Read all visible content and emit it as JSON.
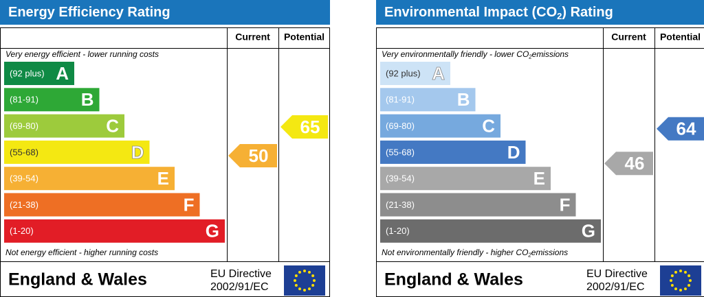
{
  "panels": [
    {
      "title": [
        "Energy Efficiency Rating"
      ],
      "headers": [
        "Current",
        "Potential"
      ],
      "top_note": [
        "Very energy efficient - lower running costs"
      ],
      "bottom_note": [
        "Not energy efficient - higher running costs"
      ],
      "bands": [
        {
          "range": "(92 plus)",
          "letter": "A",
          "color": "#0f8a45"
        },
        {
          "range": "(81-91)",
          "letter": "B",
          "color": "#2ea836"
        },
        {
          "range": "(69-80)",
          "letter": "C",
          "color": "#9dcb3c"
        },
        {
          "range": "(55-68)",
          "letter": "D",
          "color": "#f4e812"
        },
        {
          "range": "(39-54)",
          "letter": "E",
          "color": "#f6b034"
        },
        {
          "range": "(21-38)",
          "letter": "F",
          "color": "#ee6f24"
        },
        {
          "range": "(1-20)",
          "letter": "G",
          "color": "#e21d26"
        }
      ],
      "current": {
        "value": 50,
        "color": "#f6b034"
      },
      "potential": {
        "value": 65,
        "color": "#f4e812"
      },
      "footer": {
        "region": "England & Wales",
        "directive": [
          "EU Directive",
          "2002/91/EC"
        ]
      }
    },
    {
      "title": [
        "Environmental Impact (CO",
        "2",
        ") Rating"
      ],
      "headers": [
        "Current",
        "Potential"
      ],
      "top_note": [
        "Very environmentally friendly - lower CO",
        "2",
        "emissions"
      ],
      "bottom_note": [
        "Not environmentally friendly - higher CO",
        "2",
        "emissions"
      ],
      "bands": [
        {
          "range": "(92 plus)",
          "letter": "A",
          "color": "#cde3f6"
        },
        {
          "range": "(81-91)",
          "letter": "B",
          "color": "#a4c8ed"
        },
        {
          "range": "(69-80)",
          "letter": "C",
          "color": "#76a9de"
        },
        {
          "range": "(55-68)",
          "letter": "D",
          "color": "#4479c3"
        },
        {
          "range": "(39-54)",
          "letter": "E",
          "color": "#a8a8a8"
        },
        {
          "range": "(21-38)",
          "letter": "F",
          "color": "#8d8d8d"
        },
        {
          "range": "(1-20)",
          "letter": "G",
          "color": "#6c6c6c"
        }
      ],
      "current": {
        "value": 46,
        "color": "#a8a8a8"
      },
      "potential": {
        "value": 64,
        "color": "#4479c3"
      },
      "footer": {
        "region": "England & Wales",
        "directive": [
          "EU Directive",
          "2002/91/EC"
        ]
      }
    }
  ]
}
